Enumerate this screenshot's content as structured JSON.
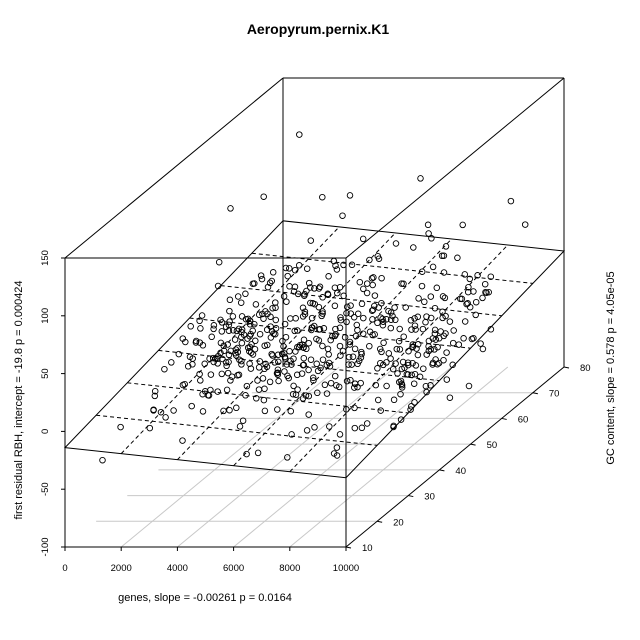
{
  "chart_data": {
    "type": "scatter",
    "title": "Aeropyrum.pernix.K1",
    "xlabel": "genes, slope =  -0.00261 p =  0.0164",
    "ylabel": "GC content, slope =  0.578 p =  4.05e-05",
    "zlabel": "first residual RBH, intercept =  -19.8 p =  0.000424",
    "x_ticks": [
      "0",
      "2000",
      "4000",
      "6000",
      "8000",
      "10000"
    ],
    "y_ticks": [
      "10",
      "20",
      "30",
      "40",
      "50",
      "60",
      "70",
      "80"
    ],
    "z_ticks": [
      "-100",
      "-50",
      "0",
      "50",
      "100",
      "150"
    ],
    "xlim": [
      0,
      10000
    ],
    "ylim": [
      10,
      80
    ],
    "zlim": [
      -100,
      150
    ],
    "regression_plane": {
      "intercept": -19.8,
      "x_slope": -0.00261,
      "y_slope": 0.578
    },
    "point_count": 560,
    "marker": "open-circle",
    "grid": true,
    "colors": {
      "points": "#000000",
      "box": "#000000",
      "floor_grid": "#c8c8c8"
    }
  }
}
